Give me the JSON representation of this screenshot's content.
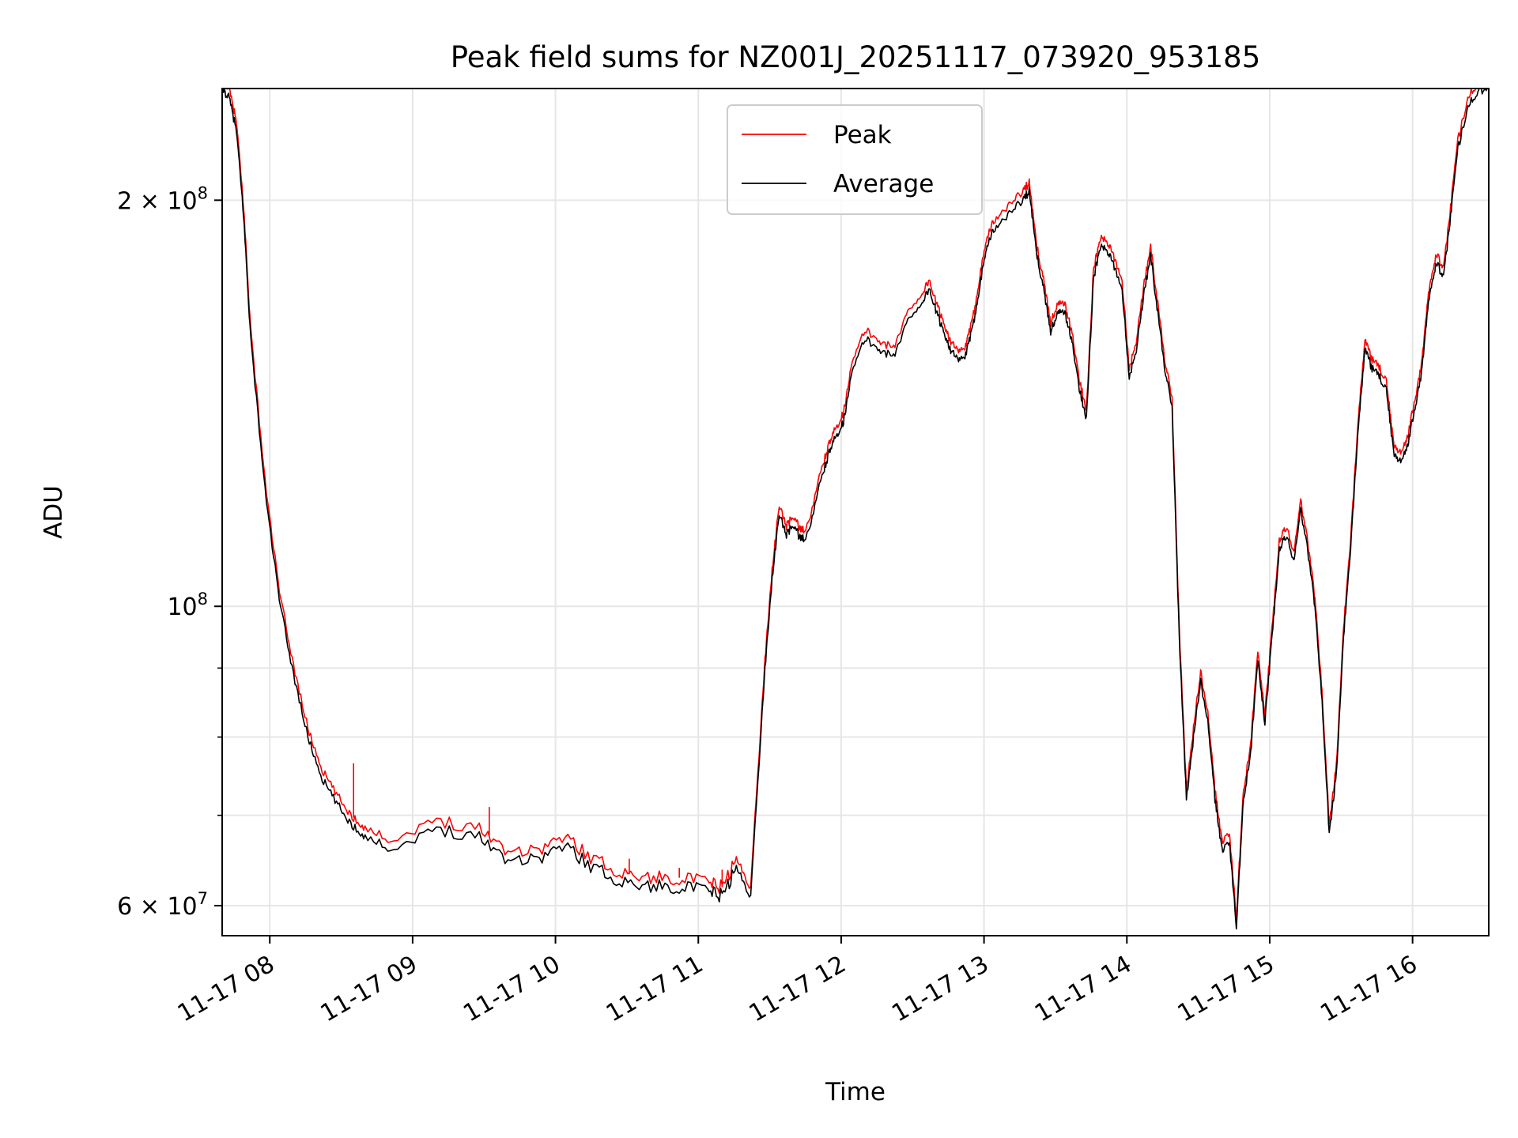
{
  "chart_data": {
    "type": "line",
    "title": "Peak field sums for NZ001J_20251117_073920_953185",
    "xlabel": "Time",
    "ylabel": "ADU",
    "yscale": "log",
    "ylim": [
      57000000,
      242000000
    ],
    "xlim": [
      "2025-11-17 07:40",
      "2025-11-17 16:32"
    ],
    "grid": true,
    "legend_location": "upper center",
    "x_ticks": [
      {
        "t": "2025-11-17 08:00",
        "label": "11-17 08"
      },
      {
        "t": "2025-11-17 09:00",
        "label": "11-17 09"
      },
      {
        "t": "2025-11-17 10:00",
        "label": "11-17 10"
      },
      {
        "t": "2025-11-17 11:00",
        "label": "11-17 11"
      },
      {
        "t": "2025-11-17 12:00",
        "label": "11-17 12"
      },
      {
        "t": "2025-11-17 13:00",
        "label": "11-17 13"
      },
      {
        "t": "2025-11-17 14:00",
        "label": "11-17 14"
      },
      {
        "t": "2025-11-17 15:00",
        "label": "11-17 15"
      },
      {
        "t": "2025-11-17 16:00",
        "label": "11-17 16"
      }
    ],
    "y_major_ticks": [
      {
        "value": 60000000,
        "mant": "6 × 10",
        "exp": "7"
      },
      {
        "value": 100000000,
        "mant": "10",
        "exp": "8"
      },
      {
        "value": 200000000,
        "mant": "2 × 10",
        "exp": "8"
      }
    ],
    "y_minor_ticks": [
      70000000,
      80000000,
      90000000
    ],
    "series": [
      {
        "name": "Peak",
        "color": "#ff0000",
        "offset_factor": 1.015,
        "spikes": [
          {
            "t_hours": 0.92,
            "value": 76500000
          },
          {
            "t_hours": 1.87,
            "value": 71000000
          },
          {
            "t_hours": 2.85,
            "value": 65000000
          },
          {
            "t_hours": 3.2,
            "value": 64000000
          },
          {
            "t_hours": 3.5,
            "value": 63800000
          }
        ]
      },
      {
        "name": "Average",
        "color": "#000000",
        "offset_factor": 1.0,
        "spikes": []
      }
    ],
    "x_hours_from_start": [
      0,
      0.05,
      0.1,
      0.15,
      0.2,
      0.3,
      0.4,
      0.5,
      0.6,
      0.7,
      0.8,
      0.9,
      1.0,
      1.2,
      1.5,
      1.8,
      2.0,
      2.2,
      2.4,
      2.6,
      2.8,
      3.0,
      3.2,
      3.4,
      3.5,
      3.6,
      3.7,
      3.8,
      3.85,
      3.9,
      3.95,
      4.0,
      4.05,
      4.1,
      4.2,
      4.25,
      4.3,
      4.35,
      4.4,
      4.5,
      4.6,
      4.7,
      4.8,
      4.9,
      4.95,
      5.0,
      5.05,
      5.1,
      5.15,
      5.2,
      5.25,
      5.3,
      5.35,
      5.4,
      5.5,
      5.6,
      5.65,
      5.7,
      5.75,
      5.8,
      5.85,
      5.9,
      5.95,
      6.0,
      6.05,
      6.1,
      6.15,
      6.2,
      6.25,
      6.3,
      6.35,
      6.4,
      6.45,
      6.5,
      6.55,
      6.6,
      6.65,
      6.7,
      6.75,
      6.8,
      6.85,
      6.9,
      6.95,
      7.0,
      7.05,
      7.1,
      7.15,
      7.2,
      7.25,
      7.3,
      7.35,
      7.4,
      7.45,
      7.5,
      7.55,
      7.6,
      7.65,
      7.7,
      7.75,
      7.8,
      7.85,
      7.9,
      7.95,
      8.0,
      8.05,
      8.1,
      8.15,
      8.2,
      8.25,
      8.3,
      8.35,
      8.4,
      8.45,
      8.5,
      8.55,
      8.6,
      8.65,
      8.72,
      8.8,
      8.87
    ],
    "y_average": [
      242000000,
      238000000,
      225000000,
      195000000,
      158000000,
      122000000,
      101000000,
      89000000,
      80000000,
      74500000,
      71500000,
      69000000,
      67500000,
      66000000,
      68500000,
      67500000,
      65000000,
      65000000,
      66500000,
      64000000,
      62500000,
      62000000,
      62000000,
      61500000,
      61000000,
      64000000,
      61000000,
      90000000,
      105000000,
      117000000,
      113000000,
      115000000,
      112000000,
      113000000,
      125000000,
      130000000,
      134000000,
      137000000,
      148000000,
      158000000,
      155000000,
      153000000,
      163000000,
      168000000,
      172000000,
      165000000,
      160000000,
      155000000,
      152000000,
      153000000,
      160000000,
      172000000,
      185000000,
      190000000,
      195000000,
      200000000,
      203000000,
      183000000,
      172000000,
      160000000,
      165000000,
      165000000,
      157000000,
      145000000,
      138000000,
      175000000,
      185000000,
      183000000,
      178000000,
      172000000,
      148000000,
      155000000,
      170000000,
      182000000,
      165000000,
      150000000,
      140000000,
      95000000,
      72000000,
      80000000,
      88000000,
      82000000,
      72000000,
      66000000,
      67000000,
      58000000,
      72000000,
      78000000,
      91000000,
      82000000,
      95000000,
      110000000,
      113000000,
      108000000,
      118000000,
      110000000,
      100000000,
      85000000,
      68000000,
      75000000,
      95000000,
      110000000,
      135000000,
      155000000,
      150000000,
      148000000,
      145000000,
      130000000,
      128000000,
      132000000,
      140000000,
      150000000,
      170000000,
      180000000,
      175000000,
      195000000,
      218000000,
      235000000,
      241000000,
      242000000
    ]
  }
}
